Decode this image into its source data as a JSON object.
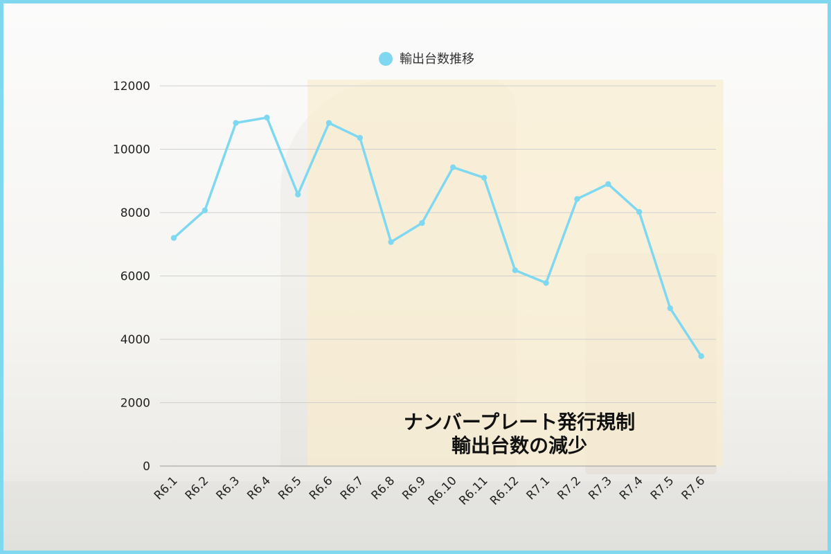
{
  "chart_data": {
    "type": "line",
    "categories": [
      "R6.1",
      "R6.2",
      "R6.3",
      "R6.4",
      "R6.5",
      "R6.6",
      "R6.7",
      "R6.8",
      "R6.9",
      "R6.10",
      "R6.11",
      "R6.12",
      "R7.1",
      "R7.2",
      "R7.3",
      "R7.4",
      "R7.5",
      "R7.6"
    ],
    "series": [
      {
        "name": "輸出台数推移",
        "values": [
          7200,
          8070,
          10830,
          11000,
          8570,
          10830,
          10360,
          7070,
          7670,
          9430,
          9100,
          6180,
          5780,
          8430,
          8900,
          8020,
          4980,
          3470
        ],
        "color": "#7fd8f0"
      }
    ],
    "ylim": [
      0,
      12000
    ],
    "yticks": [
      0,
      2000,
      4000,
      6000,
      8000,
      10000,
      12000
    ],
    "grid": true,
    "legend_position": "top-center",
    "highlight": {
      "from_category": "R6.5",
      "to_category": "R7.6",
      "color": "#fbeccc",
      "caption_lines": [
        "ナンバープレート発行規制",
        "輸出台数の減少"
      ]
    }
  }
}
